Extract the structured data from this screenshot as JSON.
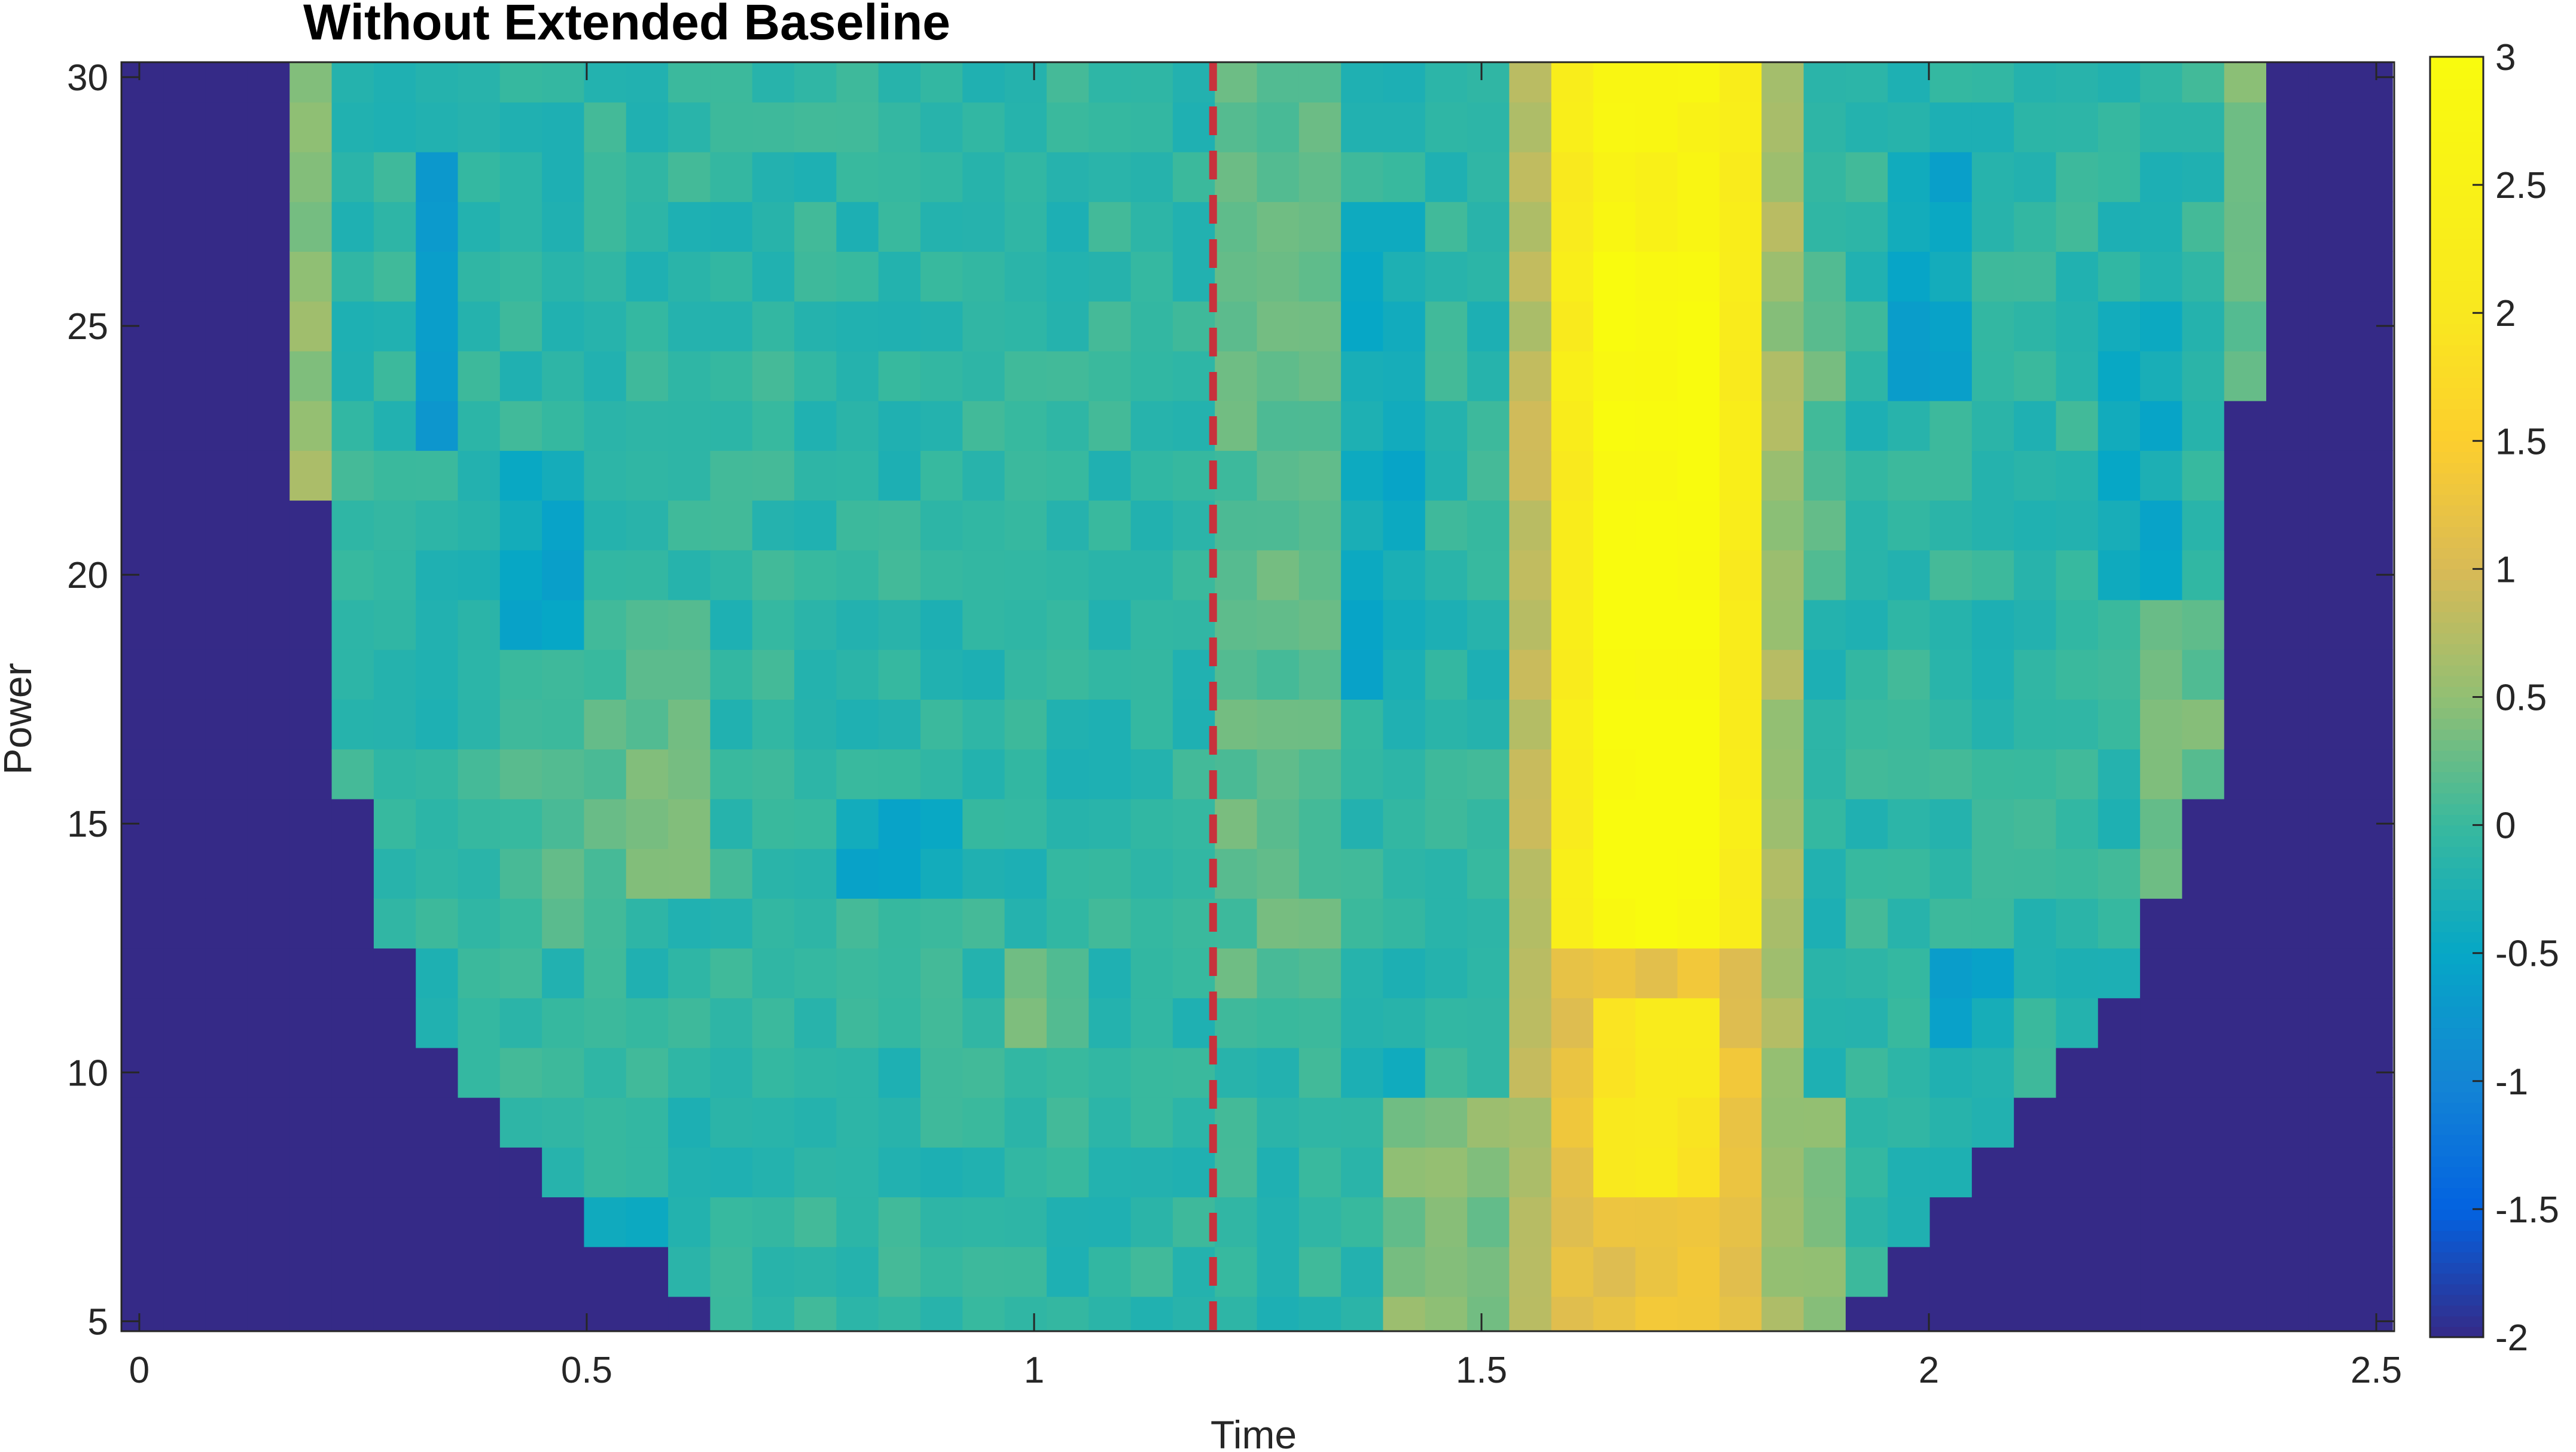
{
  "chart_data": {
    "type": "heatmap",
    "title": "Without Extended Baseline",
    "xlabel": "Time",
    "ylabel": "Power",
    "xlim": [
      -0.02,
      2.52
    ],
    "ylim": [
      4.8,
      30.3
    ],
    "xticks": [
      0,
      0.5,
      1,
      1.5,
      2,
      2.5
    ],
    "xtick_labels": [
      "0",
      "0.5",
      "1",
      "1.5",
      "2",
      "2.5"
    ],
    "yticks": [
      5,
      10,
      15,
      20,
      25,
      30
    ],
    "ytick_labels": [
      "5",
      "10",
      "15",
      "20",
      "25",
      "30"
    ],
    "colormap": "parula",
    "color_range": [
      -2,
      3
    ],
    "colorbar_ticks": [
      -2,
      -1.5,
      -1,
      -0.5,
      0,
      0.5,
      1,
      1.5,
      2,
      2.5,
      3
    ],
    "colorbar_tick_labels": [
      "-2",
      "-1.5",
      "-1",
      "-0.5",
      "0",
      "0.5",
      "1",
      "1.5",
      "2",
      "2.5",
      "3"
    ],
    "event_line": {
      "x": 1.2,
      "color": "#c8323c",
      "style": "dashed"
    },
    "x_bins": {
      "start": -0.02,
      "width": 0.047,
      "count": 54
    },
    "y_bins": [
      5,
      6,
      7,
      8,
      9,
      10,
      11,
      12,
      13,
      14,
      15,
      16,
      17,
      18,
      19,
      20,
      21,
      22,
      23,
      24,
      25,
      26,
      27,
      28,
      29,
      30
    ],
    "valid_time_range_by_power": [
      {
        "power": 5,
        "t_start": 0.64,
        "t_end": 1.91
      },
      {
        "power": 6,
        "t_start": 0.59,
        "t_end": 1.96
      },
      {
        "power": 7,
        "t_start": 0.5,
        "t_end": 2.01
      },
      {
        "power": 8,
        "t_start": 0.45,
        "t_end": 2.05
      },
      {
        "power": 9,
        "t_start": 0.4,
        "t_end": 2.1
      },
      {
        "power": 10,
        "t_start": 0.36,
        "t_end": 2.15
      },
      {
        "power": 11,
        "t_start": 0.31,
        "t_end": 2.2
      },
      {
        "power": 12,
        "t_start": 0.31,
        "t_end": 2.24
      },
      {
        "power": 13,
        "t_start": 0.26,
        "t_end": 2.24
      },
      {
        "power": 14,
        "t_start": 0.26,
        "t_end": 2.29
      },
      {
        "power": 15,
        "t_start": 0.26,
        "t_end": 2.29
      },
      {
        "power": 16,
        "t_start": 0.21,
        "t_end": 2.34
      },
      {
        "power": 17,
        "t_start": 0.21,
        "t_end": 2.34
      },
      {
        "power": 18,
        "t_start": 0.21,
        "t_end": 2.34
      },
      {
        "power": 19,
        "t_start": 0.21,
        "t_end": 2.34
      },
      {
        "power": 20,
        "t_start": 0.21,
        "t_end": 2.34
      },
      {
        "power": 21,
        "t_start": 0.21,
        "t_end": 2.34
      },
      {
        "power": 22,
        "t_start": 0.17,
        "t_end": 2.34
      },
      {
        "power": 23,
        "t_start": 0.17,
        "t_end": 2.34
      },
      {
        "power": 24,
        "t_start": 0.17,
        "t_end": 2.38
      },
      {
        "power": 25,
        "t_start": 0.17,
        "t_end": 2.38
      },
      {
        "power": 26,
        "t_start": 0.17,
        "t_end": 2.38
      },
      {
        "power": 27,
        "t_start": 0.17,
        "t_end": 2.38
      },
      {
        "power": 28,
        "t_start": 0.17,
        "t_end": 2.38
      },
      {
        "power": 29,
        "t_start": 0.17,
        "t_end": 2.38
      },
      {
        "power": 30,
        "t_start": 0.17,
        "t_end": 2.38
      }
    ],
    "outside_value": -2,
    "background_value": -0.1,
    "hotspots": [
      {
        "t_start": 1.58,
        "t_end": 1.82,
        "p_start": 4.8,
        "p_end": 13,
        "value": 1.2
      },
      {
        "t_start": 1.63,
        "t_end": 1.77,
        "p_start": 8,
        "p_end": 12,
        "value": 2.0
      },
      {
        "t_start": 1.58,
        "t_end": 1.82,
        "p_start": 13,
        "p_end": 30.3,
        "value": 2.2
      },
      {
        "t_start": 1.63,
        "t_end": 1.77,
        "p_start": 13,
        "p_end": 27,
        "value": 3.0
      },
      {
        "t_start": 1.63,
        "t_end": 1.77,
        "p_start": 27,
        "p_end": 30.3,
        "value": 2.6
      },
      {
        "t_start": 1.54,
        "t_end": 1.58,
        "p_start": 5,
        "p_end": 30.3,
        "value": 0.8
      },
      {
        "t_start": 1.82,
        "t_end": 1.86,
        "p_start": 5,
        "p_end": 30.3,
        "value": 0.6
      },
      {
        "t_start": 1.4,
        "t_end": 1.54,
        "p_start": 5,
        "p_end": 10,
        "value": 0.4
      },
      {
        "t_start": 1.86,
        "t_end": 1.91,
        "p_start": 5,
        "p_end": 10,
        "value": 0.4
      },
      {
        "t_start": 1.22,
        "t_end": 1.36,
        "p_start": 12,
        "p_end": 30.3,
        "value": 0.2
      },
      {
        "t_start": 0.96,
        "t_end": 1.08,
        "p_start": 11,
        "p_end": 13,
        "value": 0.25
      },
      {
        "t_start": 0.4,
        "t_end": 0.55,
        "p_start": 13,
        "p_end": 19,
        "value": 0.15
      },
      {
        "t_start": 0.31,
        "t_end": 0.36,
        "p_start": 23,
        "p_end": 29,
        "value": -0.6
      },
      {
        "t_start": 0.41,
        "t_end": 0.5,
        "p_start": 19,
        "p_end": 23,
        "value": -0.5
      },
      {
        "t_start": 0.78,
        "t_end": 0.92,
        "p_start": 14,
        "p_end": 16,
        "value": -0.45
      },
      {
        "t_start": 0.5,
        "t_end": 0.59,
        "p_start": 7,
        "p_end": 8,
        "value": -0.55
      },
      {
        "t_start": 1.36,
        "t_end": 1.45,
        "p_start": 9.5,
        "p_end": 11,
        "value": -0.45
      },
      {
        "t_start": 1.36,
        "t_end": 1.45,
        "p_start": 18,
        "p_end": 28,
        "value": -0.4
      },
      {
        "t_start": 1.96,
        "t_end": 2.05,
        "p_start": 24,
        "p_end": 29,
        "value": -0.5
      },
      {
        "t_start": 2.01,
        "t_end": 2.1,
        "p_start": 11,
        "p_end": 13,
        "value": -0.5
      },
      {
        "t_start": 2.2,
        "t_end": 2.29,
        "p_start": 20,
        "p_end": 26,
        "value": -0.4
      },
      {
        "t_start": 2.24,
        "t_end": 2.34,
        "p_start": 14,
        "p_end": 20,
        "value": 0.3
      },
      {
        "t_start": 2.34,
        "t_end": 2.38,
        "p_start": 24,
        "p_end": 30.3,
        "value": 0.3
      },
      {
        "t_start": 0.17,
        "t_end": 0.21,
        "p_start": 22,
        "p_end": 30.3,
        "value": 0.5
      },
      {
        "t_start": 0.55,
        "t_end": 0.64,
        "p_start": 14,
        "p_end": 20,
        "value": 0.3
      },
      {
        "t_start": 1.86,
        "t_end": 1.91,
        "p_start": 20,
        "p_end": 27,
        "value": 0.2
      }
    ]
  }
}
